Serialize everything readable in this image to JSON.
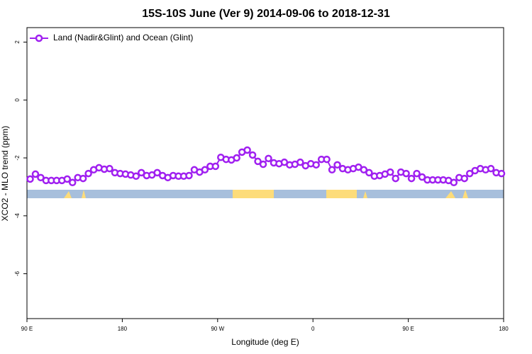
{
  "chart_data": {
    "type": "line",
    "title": "15S-10S June (Ver 9)   2014-09-06 to 2018-12-31",
    "x_label": "Longitude (deg E)",
    "y_label": "XCO2 - MLO trend (ppm)",
    "xlim": [
      90,
      540
    ],
    "xticks": [
      {
        "value": 90,
        "label": "90 E"
      },
      {
        "value": 180,
        "label": "180"
      },
      {
        "value": 270,
        "label": "90 W"
      },
      {
        "value": 360,
        "label": "0"
      },
      {
        "value": 450,
        "label": "90 E"
      },
      {
        "value": 540,
        "label": "180"
      }
    ],
    "ylim": [
      -7.55,
      2.5
    ],
    "yticks": [
      2,
      0,
      -2,
      -4,
      -6
    ],
    "legend": "top-left",
    "x": [
      93,
      98,
      103,
      108,
      113,
      118,
      123,
      128,
      133,
      138,
      143,
      148,
      153,
      158,
      163,
      168,
      173,
      178,
      183,
      188,
      193,
      198,
      203,
      208,
      213,
      218,
      223,
      228,
      233,
      238,
      243,
      248,
      253,
      258,
      263,
      268,
      273,
      278,
      283,
      288,
      293,
      298,
      303,
      308,
      313,
      318,
      323,
      328,
      333,
      338,
      343,
      348,
      353,
      358,
      363,
      368,
      373,
      378,
      383,
      388,
      393,
      398,
      403,
      408,
      413,
      418,
      423,
      428,
      433,
      438,
      443,
      448,
      453,
      458,
      463,
      468,
      473,
      478,
      483,
      488,
      493,
      498,
      503,
      508,
      513,
      518,
      523,
      528,
      533,
      538
    ],
    "series": [
      {
        "name": "Land (Nadir&Glint) and Ocean (Glint)",
        "color": "#a020f0",
        "values": [
          -2.73,
          -2.56,
          -2.68,
          -2.78,
          -2.78,
          -2.78,
          -2.78,
          -2.73,
          -2.85,
          -2.68,
          -2.71,
          -2.54,
          -2.41,
          -2.34,
          -2.39,
          -2.37,
          -2.51,
          -2.54,
          -2.56,
          -2.59,
          -2.63,
          -2.51,
          -2.61,
          -2.59,
          -2.51,
          -2.61,
          -2.68,
          -2.61,
          -2.63,
          -2.63,
          -2.61,
          -2.41,
          -2.49,
          -2.41,
          -2.29,
          -2.29,
          -1.98,
          -2.05,
          -2.07,
          -2.0,
          -1.8,
          -1.73,
          -1.9,
          -2.12,
          -2.22,
          -2.02,
          -2.17,
          -2.2,
          -2.15,
          -2.24,
          -2.22,
          -2.15,
          -2.27,
          -2.2,
          -2.24,
          -2.05,
          -2.05,
          -2.41,
          -2.24,
          -2.37,
          -2.41,
          -2.37,
          -2.32,
          -2.41,
          -2.51,
          -2.63,
          -2.61,
          -2.56,
          -2.49,
          -2.71,
          -2.49,
          -2.54,
          -2.71,
          -2.54,
          -2.66,
          -2.76,
          -2.76,
          -2.76,
          -2.76,
          -2.78,
          -2.85,
          -2.68,
          -2.71,
          -2.54,
          -2.44,
          -2.37,
          -2.41,
          -2.37,
          -2.51,
          -2.54
        ]
      }
    ]
  }
}
